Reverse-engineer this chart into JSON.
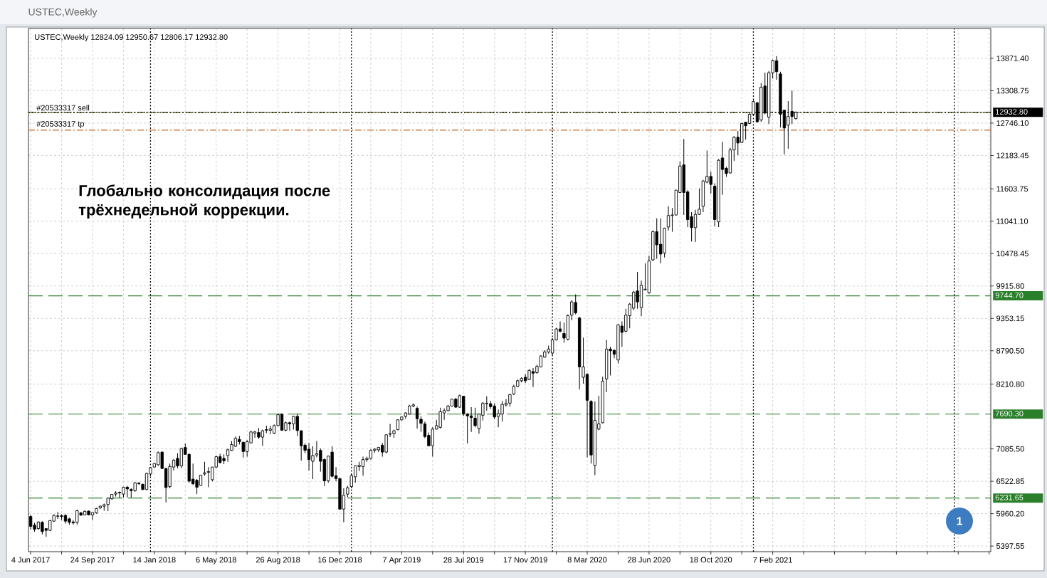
{
  "chart_data": {
    "type": "candlestick",
    "title": "USTEC,Weekly",
    "subtitle": "USTEC,Weekly 12824.09 12950.67 12806.17 12932.80",
    "annotations": [
      "Глобально консолидация после трёхнедельной коррекции.",
      "1"
    ],
    "color": "#000000",
    "grid": true,
    "xlim": [
      "2017-05-31",
      "2022-03-09"
    ],
    "ylim": [
      5300,
      14390
    ],
    "xticks": [
      {
        "value": "2017-06-04",
        "label": "4 Jun 2017"
      },
      {
        "value": "2017-07-30",
        "label": null
      },
      {
        "value": "2017-09-24",
        "label": "24 Sep 2017"
      },
      {
        "value": "2017-11-19",
        "label": null
      },
      {
        "value": "2018-01-14",
        "label": "14 Jan 2018"
      },
      {
        "value": "2018-03-11",
        "label": null
      },
      {
        "value": "2018-05-06",
        "label": "6 May 2018"
      },
      {
        "value": "2018-07-01",
        "label": null
      },
      {
        "value": "2018-08-26",
        "label": "26 Aug 2018"
      },
      {
        "value": "2018-10-21",
        "label": null
      },
      {
        "value": "2018-12-16",
        "label": "16 Dec 2018"
      },
      {
        "value": "2019-02-10",
        "label": null
      },
      {
        "value": "2019-04-07",
        "label": "7 Apr 2019"
      },
      {
        "value": "2019-06-02",
        "label": null
      },
      {
        "value": "2019-07-28",
        "label": "28 Jul 2019"
      },
      {
        "value": "2019-09-22",
        "label": null
      },
      {
        "value": "2019-11-17",
        "label": "17 Nov 2019"
      },
      {
        "value": "2020-01-12",
        "label": null
      },
      {
        "value": "2020-03-08",
        "label": "8 Mar 2020"
      },
      {
        "value": "2020-05-03",
        "label": null
      },
      {
        "value": "2020-06-28",
        "label": "28 Jun 2020"
      },
      {
        "value": "2020-08-23",
        "label": null
      },
      {
        "value": "2020-10-18",
        "label": "18 Oct 2020"
      },
      {
        "value": "2020-12-13",
        "label": null
      },
      {
        "value": "2021-02-07",
        "label": "7 Feb 2021"
      },
      {
        "value": "2021-04-04",
        "label": null
      },
      {
        "value": "2021-05-30",
        "label": null
      },
      {
        "value": "2021-07-25",
        "label": null
      },
      {
        "value": "2021-09-19",
        "label": null
      },
      {
        "value": "2021-11-14",
        "label": null
      },
      {
        "value": "2022-01-09",
        "label": null
      },
      {
        "value": "2022-03-06",
        "label": null
      }
    ],
    "yticks": [
      {
        "value": 5397.55,
        "label": "5397.55"
      },
      {
        "value": 5960.2,
        "label": "5960.20"
      },
      {
        "value": 6522.85,
        "label": "6522.85"
      },
      {
        "value": 7085.5,
        "label": "7085.50"
      },
      {
        "value": 8210.8,
        "label": "8210.80"
      },
      {
        "value": 8790.5,
        "label": "8790.50"
      },
      {
        "value": 9353.15,
        "label": "9353.15"
      },
      {
        "value": 9915.8,
        "label": "9915.80"
      },
      {
        "value": 10478.45,
        "label": "10478.45"
      },
      {
        "value": 11041.1,
        "label": "11041.10"
      },
      {
        "value": 11603.75,
        "label": "11603.75"
      },
      {
        "value": 12183.45,
        "label": "12183.45"
      },
      {
        "value": 12746.1,
        "label": "12746.10"
      },
      {
        "value": 13308.75,
        "label": "13308.75"
      },
      {
        "value": 13871.4,
        "label": "13871.40"
      }
    ],
    "ref_lines": [
      {
        "axis": "x",
        "value": "2018-01-07",
        "color": "#000000",
        "line_style": "dotted"
      },
      {
        "axis": "x",
        "value": "2019-01-06",
        "color": "#000000",
        "line_style": "dotted"
      },
      {
        "axis": "x",
        "value": "2020-01-05",
        "color": "#000000",
        "line_style": "dotted"
      },
      {
        "axis": "x",
        "value": "2021-01-03",
        "color": "#000000",
        "line_style": "dotted"
      },
      {
        "axis": "x",
        "value": "2022-01-02",
        "color": "#000000",
        "line_style": "dotted"
      },
      {
        "axis": "y",
        "value": 9744.7,
        "label": "9744.70",
        "color": "#2a7f2a",
        "line_style": "dashed"
      },
      {
        "axis": "y",
        "value": 7690.3,
        "label": "7690.30",
        "color": "#2a7f2a",
        "line_style": "dashed"
      },
      {
        "axis": "y",
        "value": 6231.65,
        "label": "6231.65",
        "color": "#2a7f2a",
        "line_style": "dashed"
      },
      {
        "axis": "y",
        "value": 12625,
        "label": "#20533317 tp",
        "color": "#c8804a",
        "line_style": "dashdot"
      },
      {
        "axis": "y",
        "value": 12930,
        "label": "#20533317 sell",
        "color": "#6e6b24",
        "line_style": "dashdot"
      },
      {
        "axis": "y",
        "value": 12932.8,
        "label": "12932.80",
        "color": "#000000",
        "line_style": "dotted"
      }
    ],
    "x": [
      "2017-06-04",
      "2017-06-11",
      "2017-06-18",
      "2017-06-25",
      "2017-07-02",
      "2017-07-09",
      "2017-07-16",
      "2017-07-23",
      "2017-07-30",
      "2017-08-06",
      "2017-08-13",
      "2017-08-20",
      "2017-08-27",
      "2017-09-03",
      "2017-09-10",
      "2017-09-17",
      "2017-09-24",
      "2017-10-01",
      "2017-10-08",
      "2017-10-15",
      "2017-10-22",
      "2017-10-29",
      "2017-11-05",
      "2017-11-12",
      "2017-11-19",
      "2017-11-26",
      "2017-12-03",
      "2017-12-10",
      "2017-12-17",
      "2017-12-24",
      "2017-12-31",
      "2018-01-07",
      "2018-01-14",
      "2018-01-21",
      "2018-01-28",
      "2018-02-04",
      "2018-02-11",
      "2018-02-18",
      "2018-02-25",
      "2018-03-04",
      "2018-03-11",
      "2018-03-18",
      "2018-03-25",
      "2018-04-01",
      "2018-04-08",
      "2018-04-15",
      "2018-04-22",
      "2018-04-29",
      "2018-05-06",
      "2018-05-13",
      "2018-05-20",
      "2018-05-27",
      "2018-06-03",
      "2018-06-10",
      "2018-06-17",
      "2018-06-24",
      "2018-07-01",
      "2018-07-08",
      "2018-07-15",
      "2018-07-22",
      "2018-07-29",
      "2018-08-05",
      "2018-08-12",
      "2018-08-19",
      "2018-08-26",
      "2018-09-02",
      "2018-09-09",
      "2018-09-16",
      "2018-09-23",
      "2018-09-30",
      "2018-10-07",
      "2018-10-14",
      "2018-10-21",
      "2018-10-28",
      "2018-11-04",
      "2018-11-11",
      "2018-11-18",
      "2018-11-25",
      "2018-12-02",
      "2018-12-09",
      "2018-12-16",
      "2018-12-23",
      "2018-12-30",
      "2019-01-06",
      "2019-01-13",
      "2019-01-20",
      "2019-01-27",
      "2019-02-03",
      "2019-02-10",
      "2019-02-17",
      "2019-02-24",
      "2019-03-03",
      "2019-03-10",
      "2019-03-17",
      "2019-03-24",
      "2019-03-31",
      "2019-04-07",
      "2019-04-14",
      "2019-04-21",
      "2019-04-28",
      "2019-05-05",
      "2019-05-12",
      "2019-05-19",
      "2019-05-26",
      "2019-06-02",
      "2019-06-09",
      "2019-06-16",
      "2019-06-23",
      "2019-06-30",
      "2019-07-07",
      "2019-07-14",
      "2019-07-21",
      "2019-07-28",
      "2019-08-04",
      "2019-08-11",
      "2019-08-18",
      "2019-08-25",
      "2019-09-01",
      "2019-09-08",
      "2019-09-15",
      "2019-09-22",
      "2019-09-29",
      "2019-10-06",
      "2019-10-13",
      "2019-10-20",
      "2019-10-27",
      "2019-11-03",
      "2019-11-10",
      "2019-11-17",
      "2019-11-24",
      "2019-12-01",
      "2019-12-08",
      "2019-12-15",
      "2019-12-22",
      "2019-12-29",
      "2020-01-05",
      "2020-01-12",
      "2020-01-19",
      "2020-01-26",
      "2020-02-02",
      "2020-02-09",
      "2020-02-16",
      "2020-02-23",
      "2020-03-01",
      "2020-03-08",
      "2020-03-15",
      "2020-03-22",
      "2020-03-29",
      "2020-04-05",
      "2020-04-12",
      "2020-04-19",
      "2020-04-26",
      "2020-05-03",
      "2020-05-10",
      "2020-05-17",
      "2020-05-24",
      "2020-05-31",
      "2020-06-07",
      "2020-06-14",
      "2020-06-21",
      "2020-06-28",
      "2020-07-05",
      "2020-07-12",
      "2020-07-19",
      "2020-07-26",
      "2020-08-02",
      "2020-08-09",
      "2020-08-16",
      "2020-08-23",
      "2020-08-30",
      "2020-09-06",
      "2020-09-13",
      "2020-09-20",
      "2020-09-27",
      "2020-10-04",
      "2020-10-11",
      "2020-10-18",
      "2020-10-25",
      "2020-11-01",
      "2020-11-08",
      "2020-11-15",
      "2020-11-22",
      "2020-11-29",
      "2020-12-06",
      "2020-12-13",
      "2020-12-20",
      "2020-12-27",
      "2021-01-03",
      "2021-01-10",
      "2021-01-17",
      "2021-01-24",
      "2021-01-31",
      "2021-02-07",
      "2021-02-14",
      "2021-02-21",
      "2021-02-28",
      "2021-03-07",
      "2021-03-14",
      "2021-03-21"
    ],
    "ohlc": [
      [
        5910,
        5940,
        5690,
        5740
      ],
      [
        5760,
        5800,
        5645,
        5690
      ],
      [
        5700,
        5830,
        5680,
        5815
      ],
      [
        5810,
        5830,
        5600,
        5650
      ],
      [
        5700,
        5705,
        5560,
        5670
      ],
      [
        5670,
        5850,
        5655,
        5840
      ],
      [
        5830,
        5950,
        5815,
        5930
      ],
      [
        5915,
        5990,
        5870,
        5920
      ],
      [
        5925,
        5950,
        5850,
        5910
      ],
      [
        5930,
        5950,
        5790,
        5830
      ],
      [
        5870,
        5890,
        5770,
        5810
      ],
      [
        5815,
        5850,
        5770,
        5800
      ],
      [
        5810,
        6030,
        5770,
        6010
      ],
      [
        5975,
        5990,
        5920,
        5935
      ],
      [
        5940,
        6020,
        5930,
        6000
      ],
      [
        6005,
        6015,
        5935,
        5940
      ],
      [
        5940,
        5980,
        5850,
        5980
      ],
      [
        5975,
        6060,
        5960,
        6050
      ],
      [
        6060,
        6100,
        6040,
        6090
      ],
      [
        6090,
        6135,
        6010,
        6115
      ],
      [
        6120,
        6240,
        6005,
        6230
      ],
      [
        6220,
        6300,
        6200,
        6295
      ],
      [
        6300,
        6350,
        6260,
        6320
      ],
      [
        6330,
        6345,
        6240,
        6320
      ],
      [
        6300,
        6430,
        6240,
        6420
      ],
      [
        6420,
        6440,
        6240,
        6390
      ],
      [
        6380,
        6400,
        6240,
        6360
      ],
      [
        6360,
        6510,
        6340,
        6495
      ],
      [
        6490,
        6510,
        6460,
        6480
      ],
      [
        6470,
        6480,
        6370,
        6380
      ],
      [
        6380,
        6670,
        6370,
        6660
      ],
      [
        6650,
        6770,
        6610,
        6760
      ],
      [
        6770,
        6840,
        6760,
        6830
      ],
      [
        6810,
        7040,
        6790,
        7020
      ],
      [
        7030,
        7040,
        6740,
        6745
      ],
      [
        6745,
        6760,
        6155,
        6415
      ],
      [
        6430,
        6830,
        6400,
        6780
      ],
      [
        6770,
        6910,
        6710,
        6890
      ],
      [
        6920,
        7010,
        6750,
        6790
      ],
      [
        6790,
        7110,
        6750,
        7090
      ],
      [
        7110,
        7180,
        6990,
        6990
      ],
      [
        6990,
        7010,
        6500,
        6525
      ],
      [
        6560,
        6830,
        6460,
        6480
      ],
      [
        6540,
        6560,
        6300,
        6420
      ],
      [
        6450,
        6630,
        6440,
        6630
      ],
      [
        6650,
        6860,
        6620,
        6670
      ],
      [
        6680,
        6770,
        6420,
        6690
      ],
      [
        6550,
        6770,
        6520,
        6770
      ],
      [
        6770,
        6970,
        6750,
        6950
      ],
      [
        6950,
        7000,
        6830,
        6850
      ],
      [
        6920,
        6990,
        6820,
        6880
      ],
      [
        6970,
        7090,
        6860,
        7070
      ],
      [
        7060,
        7220,
        7050,
        7160
      ],
      [
        7130,
        7300,
        7120,
        7270
      ],
      [
        7250,
        7310,
        7160,
        7210
      ],
      [
        7200,
        7210,
        6935,
        7040
      ],
      [
        7040,
        7240,
        6950,
        7210
      ],
      [
        7190,
        7400,
        7180,
        7380
      ],
      [
        7360,
        7400,
        7280,
        7380
      ],
      [
        7370,
        7450,
        7260,
        7290
      ],
      [
        7290,
        7420,
        7140,
        7400
      ],
      [
        7420,
        7490,
        7360,
        7410
      ],
      [
        7410,
        7490,
        7340,
        7430
      ],
      [
        7360,
        7510,
        7340,
        7490
      ],
      [
        7490,
        7690,
        7480,
        7680
      ],
      [
        7690,
        7700,
        7400,
        7410
      ],
      [
        7410,
        7560,
        7390,
        7540
      ],
      [
        7540,
        7560,
        7400,
        7520
      ],
      [
        7520,
        7660,
        7420,
        7650
      ],
      [
        7650,
        7700,
        7310,
        7405
      ],
      [
        7400,
        7410,
        6880,
        7140
      ],
      [
        7150,
        7180,
        7010,
        7060
      ],
      [
        7080,
        7190,
        6710,
        6900
      ],
      [
        6870,
        7130,
        6560,
        6970
      ],
      [
        6980,
        7220,
        6940,
        7000
      ],
      [
        7060,
        7090,
        6690,
        6870
      ],
      [
        6900,
        6920,
        6440,
        6530
      ],
      [
        6530,
        6970,
        6500,
        6960
      ],
      [
        7030,
        7130,
        6590,
        6610
      ],
      [
        6620,
        6770,
        6520,
        6570
      ],
      [
        6570,
        6580,
        6030,
        6040
      ],
      [
        6040,
        6400,
        5810,
        6280
      ],
      [
        6300,
        6440,
        6250,
        6410
      ],
      [
        6430,
        6650,
        6400,
        6620
      ],
      [
        6600,
        6800,
        6500,
        6790
      ],
      [
        6780,
        6860,
        6700,
        6800
      ],
      [
        6780,
        6950,
        6620,
        6900
      ],
      [
        6900,
        6950,
        6860,
        6920
      ],
      [
        6920,
        7080,
        6900,
        7060
      ],
      [
        7060,
        7100,
        7020,
        7080
      ],
      [
        7070,
        7120,
        7030,
        7110
      ],
      [
        7150,
        7190,
        6950,
        7030
      ],
      [
        7030,
        7340,
        7010,
        7330
      ],
      [
        7340,
        7520,
        7290,
        7350
      ],
      [
        7350,
        7420,
        7280,
        7400
      ],
      [
        7420,
        7600,
        7410,
        7590
      ],
      [
        7590,
        7650,
        7580,
        7640
      ],
      [
        7650,
        7720,
        7610,
        7710
      ],
      [
        7690,
        7850,
        7680,
        7830
      ],
      [
        7830,
        7880,
        7810,
        7850
      ],
      [
        7790,
        7820,
        7440,
        7610
      ],
      [
        7600,
        7650,
        7380,
        7530
      ],
      [
        7520,
        7560,
        7270,
        7300
      ],
      [
        7320,
        7370,
        7130,
        7140
      ],
      [
        7140,
        7460,
        6950,
        7430
      ],
      [
        7430,
        7590,
        7420,
        7490
      ],
      [
        7460,
        7800,
        7440,
        7730
      ],
      [
        7710,
        7790,
        7590,
        7750
      ],
      [
        7750,
        7850,
        7740,
        7830
      ],
      [
        7830,
        7960,
        7820,
        7950
      ],
      [
        7950,
        7970,
        7800,
        7810
      ],
      [
        7810,
        8030,
        7800,
        8010
      ],
      [
        8000,
        8010,
        7660,
        7690
      ],
      [
        7690,
        7710,
        7180,
        7660
      ],
      [
        7660,
        7810,
        7380,
        7630
      ],
      [
        7620,
        7800,
        7460,
        7490
      ],
      [
        7440,
        7700,
        7350,
        7690
      ],
      [
        7670,
        7900,
        7580,
        7880
      ],
      [
        7870,
        8000,
        7750,
        7880
      ],
      [
        7870,
        7920,
        7780,
        7820
      ],
      [
        7830,
        7880,
        7600,
        7640
      ],
      [
        7650,
        7770,
        7460,
        7700
      ],
      [
        7690,
        7920,
        7560,
        7860
      ],
      [
        7850,
        7950,
        7820,
        7880
      ],
      [
        7880,
        8040,
        7820,
        8030
      ],
      [
        8040,
        8200,
        8020,
        8170
      ],
      [
        8170,
        8290,
        8160,
        8270
      ],
      [
        8270,
        8330,
        8240,
        8310
      ],
      [
        8330,
        8390,
        8230,
        8270
      ],
      [
        8290,
        8470,
        8280,
        8450
      ],
      [
        8430,
        8490,
        8160,
        8400
      ],
      [
        8410,
        8550,
        8390,
        8520
      ],
      [
        8510,
        8710,
        8500,
        8700
      ],
      [
        8680,
        8800,
        8670,
        8770
      ],
      [
        8770,
        8880,
        8740,
        8820
      ],
      [
        8750,
        9010,
        8710,
        8980
      ],
      [
        8980,
        9190,
        8970,
        9170
      ],
      [
        9170,
        9300,
        9110,
        9130
      ],
      [
        9090,
        9280,
        8930,
        9010
      ],
      [
        8990,
        9420,
        8970,
        9400
      ],
      [
        9410,
        9670,
        9320,
        9640
      ],
      [
        9630,
        9770,
        9420,
        9450
      ],
      [
        9360,
        9380,
        8120,
        8510
      ],
      [
        8330,
        9020,
        8220,
        8510
      ],
      [
        8380,
        8400,
        6940,
        7930
      ],
      [
        7910,
        7930,
        6830,
        6980
      ],
      [
        6800,
        7910,
        6630,
        7580
      ],
      [
        7430,
        8010,
        7410,
        7520
      ],
      [
        7540,
        8340,
        7530,
        8260
      ],
      [
        8300,
        8980,
        8070,
        8820
      ],
      [
        8820,
        8860,
        8360,
        8790
      ],
      [
        8800,
        8810,
        8660,
        8730
      ],
      [
        8630,
        9250,
        8570,
        9240
      ],
      [
        9220,
        9300,
        8860,
        9110
      ],
      [
        9130,
        9520,
        9110,
        9410
      ],
      [
        9400,
        9620,
        9180,
        9600
      ],
      [
        9530,
        9830,
        9500,
        9810
      ],
      [
        9830,
        10160,
        9520,
        9640
      ],
      [
        9540,
        10010,
        9390,
        9930
      ],
      [
        9850,
        10310,
        9840,
        9860
      ],
      [
        9800,
        10440,
        9780,
        10350
      ],
      [
        10370,
        10880,
        10350,
        10860
      ],
      [
        10860,
        11090,
        10390,
        10630
      ],
      [
        10640,
        11090,
        10310,
        10470
      ],
      [
        10490,
        10930,
        10410,
        10920
      ],
      [
        10940,
        11300,
        10880,
        11140
      ],
      [
        11140,
        11270,
        10860,
        11150
      ],
      [
        11150,
        11590,
        11140,
        11580
      ],
      [
        11540,
        12080,
        11530,
        12000
      ],
      [
        12020,
        12470,
        11150,
        11540
      ],
      [
        11550,
        11580,
        10940,
        11070
      ],
      [
        11120,
        11200,
        10690,
        10930
      ],
      [
        10930,
        11240,
        10680,
        11160
      ],
      [
        11160,
        11610,
        11150,
        11250
      ],
      [
        11300,
        11760,
        11200,
        11740
      ],
      [
        11720,
        12270,
        11700,
        11820
      ],
      [
        11820,
        11900,
        11520,
        11680
      ],
      [
        11650,
        11700,
        10950,
        11070
      ],
      [
        11030,
        12120,
        10940,
        12100
      ],
      [
        12140,
        12420,
        11500,
        11940
      ],
      [
        11960,
        11990,
        11810,
        11870
      ],
      [
        11880,
        12320,
        11870,
        12280
      ],
      [
        12280,
        12520,
        12090,
        12500
      ],
      [
        12500,
        12610,
        12190,
        12400
      ],
      [
        12410,
        12750,
        12400,
        12740
      ],
      [
        12760,
        12770,
        12460,
        12700
      ],
      [
        12740,
        12940,
        12730,
        12900
      ],
      [
        12900,
        13150,
        12880,
        13120
      ],
      [
        13100,
        13110,
        12750,
        12770
      ],
      [
        12800,
        13440,
        12770,
        13370
      ],
      [
        13390,
        13620,
        12900,
        12920
      ],
      [
        12850,
        13650,
        12730,
        13620
      ],
      [
        13620,
        13850,
        13520,
        13830
      ],
      [
        13830,
        13910,
        13500,
        13640
      ],
      [
        13600,
        13640,
        12670,
        12900
      ],
      [
        12970,
        12980,
        12200,
        12660
      ],
      [
        12710,
        13130,
        12300,
        12860
      ],
      [
        12950,
        13310,
        12730,
        12860
      ],
      [
        12824.09,
        12950.67,
        12806.17,
        12932.8
      ]
    ]
  }
}
